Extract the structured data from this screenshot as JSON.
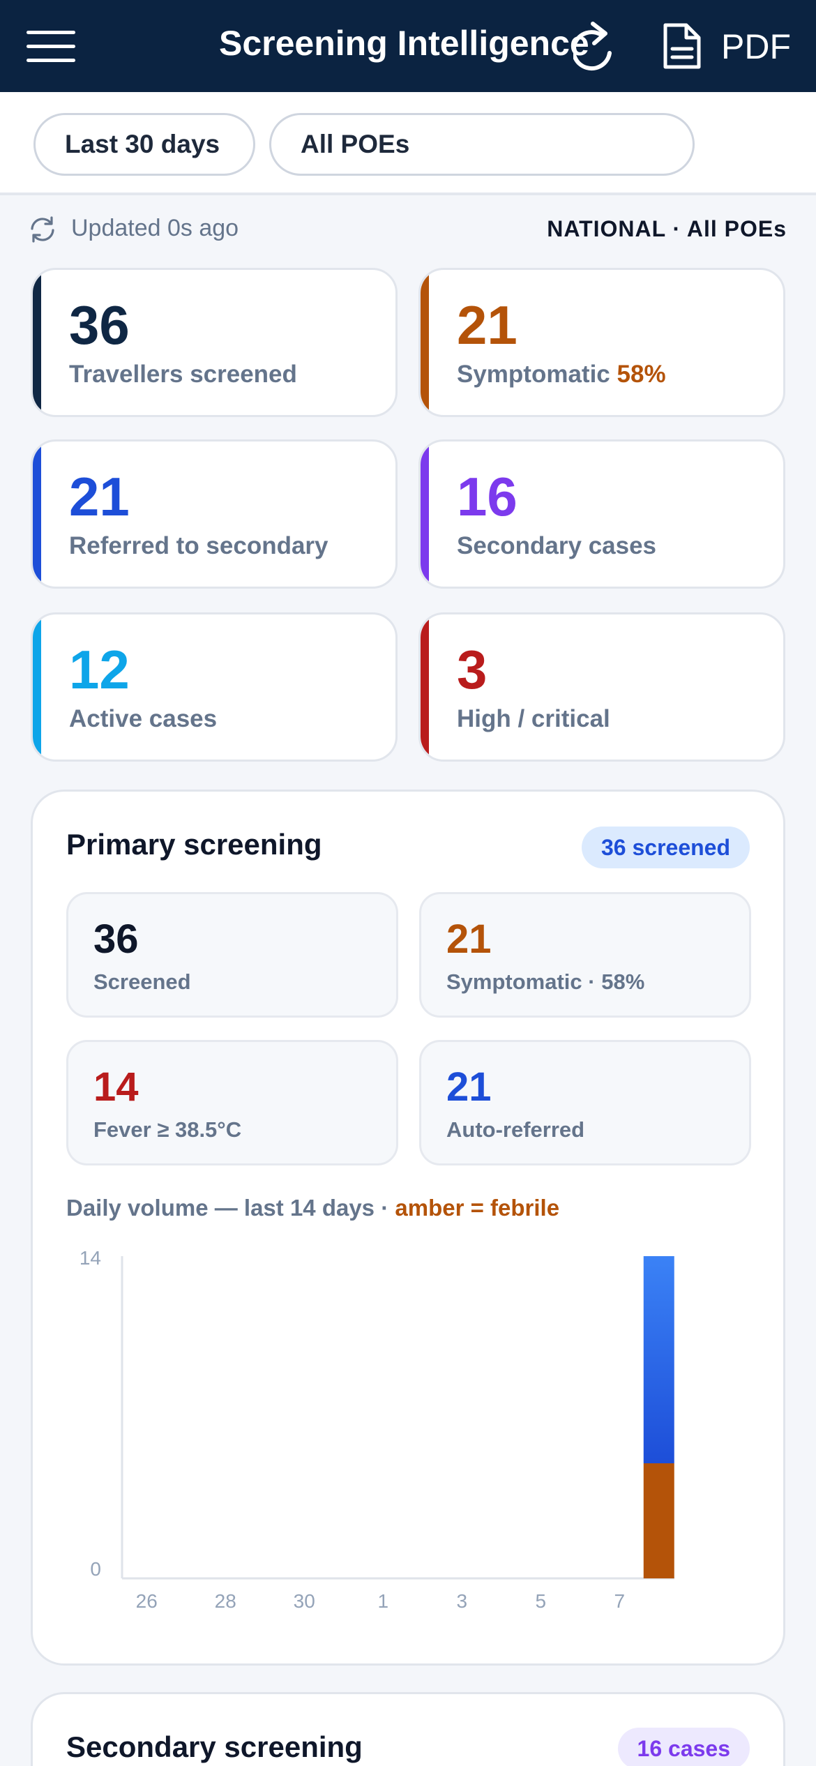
{
  "header": {
    "title": "Screening Intelligence",
    "pdf_label": "PDF",
    "menu_icon": "hamburger-menu-icon",
    "refresh_icon": "refresh-icon",
    "pdf_icon": "document-icon"
  },
  "filters": {
    "period": "Last 30 days",
    "poe": "All POEs"
  },
  "status": {
    "updated": "Updated 0s ago",
    "scope": "NATIONAL · All POEs"
  },
  "kpis": [
    {
      "value": "36",
      "label": "Travellers screened",
      "color": "#0f2744"
    },
    {
      "value": "21",
      "label": "Symptomatic",
      "extra": "58%",
      "color": "#b45309"
    },
    {
      "value": "21",
      "label": "Referred to secondary",
      "color": "#1d4ed8"
    },
    {
      "value": "16",
      "label": "Secondary cases",
      "color": "#7c3aed"
    },
    {
      "value": "12",
      "label": "Active cases",
      "color": "#0ea5e9"
    },
    {
      "value": "3",
      "label": "High / critical",
      "color": "#b91c1c"
    }
  ],
  "primary": {
    "title": "Primary screening",
    "badge": "36 screened",
    "stats": [
      {
        "value": "36",
        "label": "Screened",
        "color": "#0f172a"
      },
      {
        "value": "21",
        "label": "Symptomatic · 58%",
        "color": "#b45309"
      },
      {
        "value": "14",
        "label": "Fever ≥ 38.5°C",
        "color": "#b91c1c"
      },
      {
        "value": "21",
        "label": "Auto-referred",
        "color": "#1d4ed8"
      }
    ],
    "caption_main": "Daily volume — last 14 days ·",
    "caption_note": "amber = febrile"
  },
  "chart_data": {
    "type": "bar",
    "stacked": true,
    "categories": [
      "26",
      "27",
      "28",
      "29",
      "30",
      "31",
      "1",
      "2",
      "3",
      "4",
      "5",
      "6",
      "7",
      "8"
    ],
    "tick_labels": [
      "26",
      "28",
      "30",
      "1",
      "3",
      "5",
      "7"
    ],
    "series": [
      {
        "name": "febrile",
        "values": [
          0,
          0,
          0,
          0,
          0,
          0,
          0,
          0,
          0,
          0,
          0,
          0,
          0,
          5
        ],
        "color": "#b45309"
      },
      {
        "values": [
          0,
          0,
          0,
          0,
          0,
          0,
          0,
          0,
          0,
          0,
          0,
          0,
          0,
          9
        ],
        "color": "#2563eb"
      }
    ],
    "ylim": [
      0,
      14
    ],
    "ytick_labels": [
      "14",
      "0"
    ],
    "grid": false
  },
  "secondary": {
    "title": "Secondary screening",
    "badge": "16 cases"
  }
}
